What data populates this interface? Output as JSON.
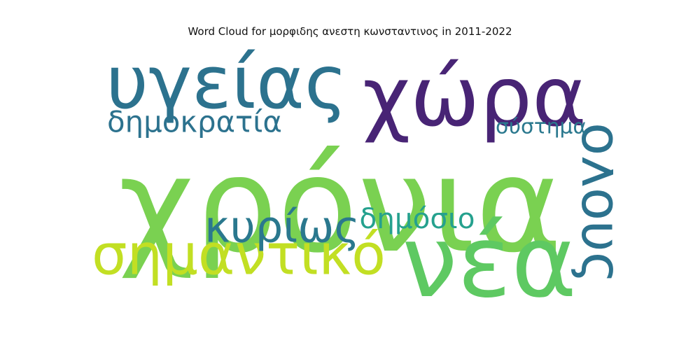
{
  "title": "Word Cloud for μορφιδης ανεστη κωνσταντινος in 2011-2022",
  "chart_data": {
    "type": "wordcloud",
    "title": "Word Cloud for μορφιδης ανεστη κωνσταντινος in 2011-2022",
    "words": [
      {
        "text": "χρόνια",
        "weight": 1.0,
        "color": "#7ad151",
        "orientation": "horizontal"
      },
      {
        "text": "νέα",
        "weight": 0.62,
        "color": "#5ec962",
        "orientation": "horizontal"
      },
      {
        "text": "χώρα",
        "weight": 0.55,
        "color": "#482475",
        "orientation": "horizontal"
      },
      {
        "text": "υγείας",
        "weight": 0.4,
        "color": "#2c728e",
        "orientation": "horizontal"
      },
      {
        "text": "σημαντικό",
        "weight": 0.28,
        "color": "#c2df23",
        "orientation": "horizontal"
      },
      {
        "text": "όλους",
        "weight": 0.24,
        "color": "#2c728e",
        "orientation": "vertical"
      },
      {
        "text": "κυρίως",
        "weight": 0.21,
        "color": "#2a788e",
        "orientation": "horizontal"
      },
      {
        "text": "δημοκρατία",
        "weight": 0.17,
        "color": "#2c728e",
        "orientation": "horizontal"
      },
      {
        "text": "δημόσιο",
        "weight": 0.15,
        "color": "#25a18e",
        "orientation": "horizontal"
      },
      {
        "text": "σύστημα",
        "weight": 0.12,
        "color": "#2a788e",
        "orientation": "horizontal"
      }
    ]
  }
}
